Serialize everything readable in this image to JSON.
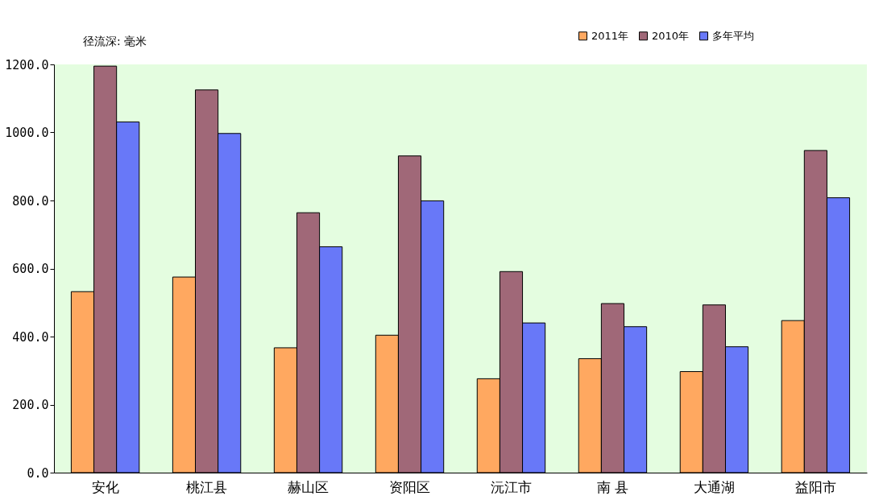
{
  "chart_data": {
    "type": "bar",
    "ylabel": "径流深: 毫米",
    "categories": [
      "安化",
      "桃江县",
      "赫山区",
      "资阳区",
      "沅江市",
      "南 县",
      "大通湖",
      "益阳市"
    ],
    "series": [
      {
        "name": "2011年",
        "color": "#ffa860",
        "values": [
          532,
          575,
          367,
          404,
          276,
          335,
          297,
          447
        ]
      },
      {
        "name": "2010年",
        "color": "#a06878",
        "values": [
          1195,
          1125,
          764,
          931,
          591,
          497,
          493,
          947
        ]
      },
      {
        "name": "多年平均",
        "color": "#6878f8",
        "values": [
          1031,
          997,
          664,
          799,
          440,
          429,
          370,
          808
        ]
      }
    ],
    "ylim": [
      0,
      1200
    ],
    "yticks": [
      {
        "value": 0,
        "label": "0.0"
      },
      {
        "value": 200,
        "label": "200.0"
      },
      {
        "value": 400,
        "label": "400.0"
      },
      {
        "value": 600,
        "label": "600.0"
      },
      {
        "value": 800,
        "label": "800.0"
      },
      {
        "value": 1000,
        "label": "1000.0"
      },
      {
        "value": 1200,
        "label": "1200.0"
      }
    ],
    "grid": false,
    "legend": "top right"
  }
}
